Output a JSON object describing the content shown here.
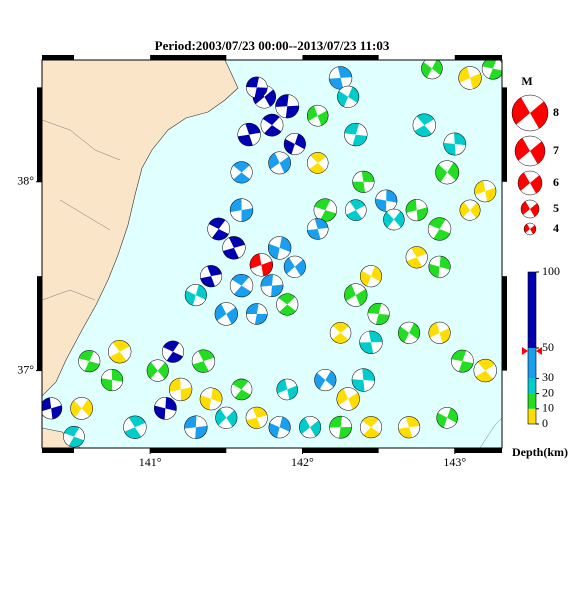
{
  "map": {
    "title": "Period:2003/07/23 00:00--2013/07/23 11:03",
    "lonlim": [
      140.29,
      143.31
    ],
    "latlim": [
      36.59,
      38.645
    ],
    "lonticks": [
      {
        "value": 141,
        "label": "141°"
      },
      {
        "value": 142,
        "label": "142°"
      },
      {
        "value": 143,
        "label": "143°"
      }
    ],
    "latticks": [
      {
        "value": 37,
        "label": "37°"
      },
      {
        "value": 38,
        "label": "38°"
      }
    ],
    "magnitude_legend": {
      "title": "M",
      "values": [
        8,
        7,
        6,
        5,
        4
      ]
    },
    "depth_scale": {
      "title": "Depth(km)",
      "clim": [
        0,
        100
      ],
      "ticks": [
        0,
        10,
        20,
        30,
        50,
        100
      ],
      "colors": [
        "#ffdd00",
        "#22dd22",
        "#00cccc",
        "#1a9ff0",
        "#0000b0"
      ]
    },
    "main_event": {
      "lon": 141.73,
      "lat": 37.56,
      "depth": 48,
      "mag": 5.8,
      "color": "#ff0000"
    },
    "events": [
      {
        "lon": 141.75,
        "lat": 38.45,
        "depth": 60,
        "mag": 5.8
      },
      {
        "lon": 141.9,
        "lat": 38.4,
        "depth": 55,
        "mag": 5.9
      },
      {
        "lon": 141.8,
        "lat": 38.3,
        "depth": 65,
        "mag": 5.7
      },
      {
        "lon": 141.65,
        "lat": 38.25,
        "depth": 58,
        "mag": 5.8
      },
      {
        "lon": 141.95,
        "lat": 38.2,
        "depth": 52,
        "mag": 5.6
      },
      {
        "lon": 141.85,
        "lat": 38.1,
        "depth": 48,
        "mag": 5.7
      },
      {
        "lon": 141.7,
        "lat": 38.5,
        "depth": 62,
        "mag": 5.5
      },
      {
        "lon": 141.6,
        "lat": 38.05,
        "depth": 40,
        "mag": 5.6
      },
      {
        "lon": 142.25,
        "lat": 38.55,
        "depth": 35,
        "mag": 5.8
      },
      {
        "lon": 142.3,
        "lat": 38.45,
        "depth": 25,
        "mag": 5.6
      },
      {
        "lon": 142.1,
        "lat": 38.35,
        "depth": 15,
        "mag": 5.5
      },
      {
        "lon": 142.35,
        "lat": 38.25,
        "depth": 22,
        "mag": 5.8
      },
      {
        "lon": 142.1,
        "lat": 38.1,
        "depth": 8,
        "mag": 5.5
      },
      {
        "lon": 142.4,
        "lat": 38.0,
        "depth": 12,
        "mag": 5.6
      },
      {
        "lon": 142.85,
        "lat": 38.6,
        "depth": 18,
        "mag": 5.5
      },
      {
        "lon": 143.1,
        "lat": 38.55,
        "depth": 8,
        "mag": 5.8
      },
      {
        "lon": 143.25,
        "lat": 38.6,
        "depth": 15,
        "mag": 5.6
      },
      {
        "lon": 142.8,
        "lat": 38.3,
        "depth": 25,
        "mag": 5.8
      },
      {
        "lon": 143.0,
        "lat": 38.2,
        "depth": 28,
        "mag": 5.7
      },
      {
        "lon": 142.95,
        "lat": 38.05,
        "depth": 14,
        "mag": 5.9
      },
      {
        "lon": 143.2,
        "lat": 37.95,
        "depth": 5,
        "mag": 5.6
      },
      {
        "lon": 142.15,
        "lat": 37.85,
        "depth": 18,
        "mag": 5.8
      },
      {
        "lon": 142.35,
        "lat": 37.85,
        "depth": 26,
        "mag": 5.5
      },
      {
        "lon": 142.55,
        "lat": 37.9,
        "depth": 35,
        "mag": 5.6
      },
      {
        "lon": 142.6,
        "lat": 37.8,
        "depth": 22,
        "mag": 5.5
      },
      {
        "lon": 142.75,
        "lat": 37.85,
        "depth": 12,
        "mag": 5.6
      },
      {
        "lon": 142.9,
        "lat": 37.75,
        "depth": 15,
        "mag": 5.8
      },
      {
        "lon": 142.75,
        "lat": 37.6,
        "depth": 5,
        "mag": 5.6
      },
      {
        "lon": 142.9,
        "lat": 37.55,
        "depth": 14,
        "mag": 5.6
      },
      {
        "lon": 143.1,
        "lat": 37.85,
        "depth": 8,
        "mag": 5.4
      },
      {
        "lon": 141.6,
        "lat": 37.85,
        "depth": 45,
        "mag": 5.8
      },
      {
        "lon": 141.45,
        "lat": 37.75,
        "depth": 55,
        "mag": 5.7
      },
      {
        "lon": 141.55,
        "lat": 37.65,
        "depth": 60,
        "mag": 5.8
      },
      {
        "lon": 141.85,
        "lat": 37.65,
        "depth": 35,
        "mag": 5.8
      },
      {
        "lon": 141.95,
        "lat": 37.55,
        "depth": 40,
        "mag": 5.6
      },
      {
        "lon": 141.8,
        "lat": 37.45,
        "depth": 38,
        "mag": 5.7
      },
      {
        "lon": 141.6,
        "lat": 37.45,
        "depth": 32,
        "mag": 5.8
      },
      {
        "lon": 141.4,
        "lat": 37.5,
        "depth": 60,
        "mag": 5.6
      },
      {
        "lon": 141.3,
        "lat": 37.4,
        "depth": 28,
        "mag": 5.6
      },
      {
        "lon": 141.5,
        "lat": 37.3,
        "depth": 42,
        "mag": 5.8
      },
      {
        "lon": 141.7,
        "lat": 37.3,
        "depth": 35,
        "mag": 5.5
      },
      {
        "lon": 141.9,
        "lat": 37.35,
        "depth": 18,
        "mag": 5.6
      },
      {
        "lon": 142.1,
        "lat": 37.75,
        "depth": 30,
        "mag": 5.5
      },
      {
        "lon": 142.45,
        "lat": 37.5,
        "depth": 8,
        "mag": 5.6
      },
      {
        "lon": 142.35,
        "lat": 37.4,
        "depth": 15,
        "mag": 5.8
      },
      {
        "lon": 142.5,
        "lat": 37.3,
        "depth": 18,
        "mag": 5.6
      },
      {
        "lon": 142.25,
        "lat": 37.2,
        "depth": 5,
        "mag": 5.5
      },
      {
        "lon": 142.45,
        "lat": 37.15,
        "depth": 22,
        "mag": 5.8
      },
      {
        "lon": 142.7,
        "lat": 37.2,
        "depth": 10,
        "mag": 5.6
      },
      {
        "lon": 142.9,
        "lat": 37.2,
        "depth": 4,
        "mag": 5.6
      },
      {
        "lon": 143.05,
        "lat": 37.05,
        "depth": 18,
        "mag": 5.7
      },
      {
        "lon": 143.2,
        "lat": 37.0,
        "depth": 6,
        "mag": 5.8
      },
      {
        "lon": 142.4,
        "lat": 36.95,
        "depth": 28,
        "mag": 5.8
      },
      {
        "lon": 142.15,
        "lat": 36.95,
        "depth": 30,
        "mag": 5.6
      },
      {
        "lon": 141.9,
        "lat": 36.9,
        "depth": 20,
        "mag": 5.5
      },
      {
        "lon": 140.6,
        "lat": 37.05,
        "depth": 15,
        "mag": 5.6
      },
      {
        "lon": 140.8,
        "lat": 37.1,
        "depth": 6,
        "mag": 5.8
      },
      {
        "lon": 140.75,
        "lat": 36.95,
        "depth": 15,
        "mag": 5.6
      },
      {
        "lon": 140.55,
        "lat": 36.8,
        "depth": 6,
        "mag": 5.7
      },
      {
        "lon": 140.35,
        "lat": 36.8,
        "depth": 55,
        "mag": 5.6
      },
      {
        "lon": 140.5,
        "lat": 36.65,
        "depth": 22,
        "mag": 5.5
      },
      {
        "lon": 140.9,
        "lat": 36.7,
        "depth": 28,
        "mag": 5.8
      },
      {
        "lon": 141.1,
        "lat": 36.8,
        "depth": 60,
        "mag": 5.7
      },
      {
        "lon": 141.05,
        "lat": 37.0,
        "depth": 12,
        "mag": 5.6
      },
      {
        "lon": 141.2,
        "lat": 36.9,
        "depth": 4,
        "mag": 5.8
      },
      {
        "lon": 141.15,
        "lat": 37.1,
        "depth": 55,
        "mag": 5.6
      },
      {
        "lon": 141.35,
        "lat": 37.05,
        "depth": 15,
        "mag": 5.8
      },
      {
        "lon": 141.4,
        "lat": 36.85,
        "depth": 8,
        "mag": 5.7
      },
      {
        "lon": 141.5,
        "lat": 36.75,
        "depth": 22,
        "mag": 5.6
      },
      {
        "lon": 141.3,
        "lat": 36.7,
        "depth": 30,
        "mag": 5.8
      },
      {
        "lon": 141.6,
        "lat": 36.9,
        "depth": 12,
        "mag": 5.5
      },
      {
        "lon": 141.7,
        "lat": 36.75,
        "depth": 5,
        "mag": 5.6
      },
      {
        "lon": 141.85,
        "lat": 36.7,
        "depth": 35,
        "mag": 5.6
      },
      {
        "lon": 142.05,
        "lat": 36.7,
        "depth": 25,
        "mag": 5.6
      },
      {
        "lon": 142.25,
        "lat": 36.7,
        "depth": 18,
        "mag": 5.7
      },
      {
        "lon": 142.45,
        "lat": 36.7,
        "depth": 6,
        "mag": 5.6
      },
      {
        "lon": 142.7,
        "lat": 36.7,
        "depth": 4,
        "mag": 5.6
      },
      {
        "lon": 142.95,
        "lat": 36.75,
        "depth": 10,
        "mag": 5.5
      },
      {
        "lon": 142.3,
        "lat": 36.85,
        "depth": 4,
        "mag": 5.8
      }
    ]
  }
}
